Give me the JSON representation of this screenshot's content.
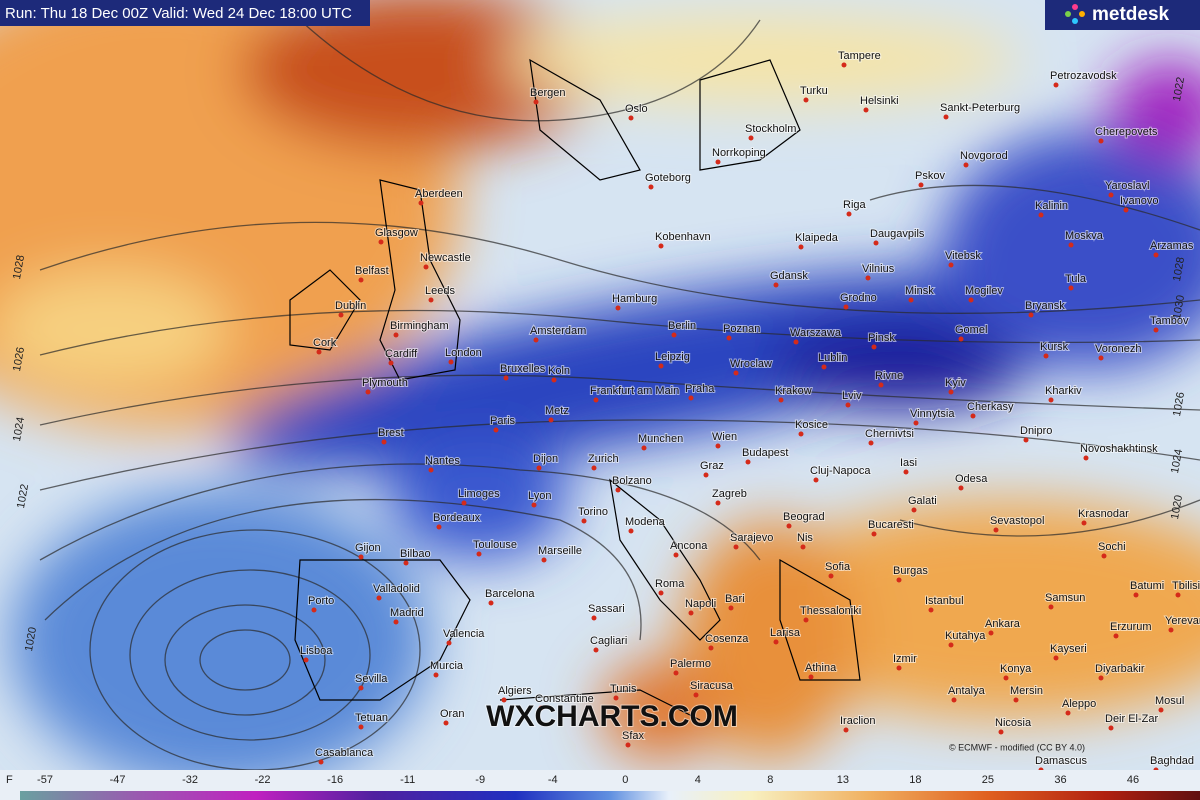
{
  "header": {
    "run": "Run: Thu 18 Dec 00Z Valid: Wed 24 Dec 18:00 UTC",
    "logo": "metdesk"
  },
  "watermark": "WXCHARTS.COM",
  "credit": "© ECMWF - modified (CC BY 4.0)",
  "isobar_labels": [
    1028,
    1026,
    1024,
    1022,
    1020,
    1022,
    1028,
    1030,
    1026,
    1024,
    1020
  ],
  "cities": [
    "Bergen",
    "Oslo",
    "Tampere",
    "Petrozavodsk",
    "Turku",
    "Helsinki",
    "Sankt-Peterburg",
    "Stockholm",
    "Norrkoping",
    "Goteborg",
    "Cherepovets",
    "Novgorod",
    "Pskov",
    "Yaroslavl",
    "Ivanovo",
    "Kalinin",
    "Riga",
    "Moskva",
    "Aberdeen",
    "Glasgow",
    "Kobenhavn",
    "Klaipeda",
    "Daugavpils",
    "Arzamas",
    "Vitebsk",
    "Belfast",
    "Newcastle",
    "Vilnius",
    "Tula",
    "Dublin",
    "Leeds",
    "Gdansk",
    "Hamburg",
    "Grodno",
    "Minsk",
    "Mogilev",
    "Bryansk",
    "Tambov",
    "Birmingham",
    "Amsterdam",
    "Berlin",
    "Poznan",
    "Warszawa",
    "Pinsk",
    "Gomel",
    "Kursk",
    "Voronezh",
    "Cork",
    "Cardiff",
    "London",
    "Leipzig",
    "Wroclaw",
    "Lublin",
    "Plymouth",
    "Bruxelles",
    "Koln",
    "Frankfurt am Main",
    "Praha",
    "Krakow",
    "Lviv",
    "Rivne",
    "Kyiv",
    "Kharkiv",
    "Cherkasy",
    "Vinnytsia",
    "Paris",
    "Metz",
    "Kosice",
    "Chernivtsi",
    "Dnipro",
    "Novoshakhtinsk",
    "Brest",
    "Munchen",
    "Wien",
    "Budapest",
    "Nantes",
    "Dijon",
    "Zurich",
    "Graz",
    "Iasi",
    "Cluj-Napoca",
    "Odesa",
    "Limoges",
    "Lyon",
    "Bolzano",
    "Zagreb",
    "Galati",
    "Bordeaux",
    "Torino",
    "Beograd",
    "Sevastopol",
    "Krasnodar",
    "Modena",
    "Bucaresti",
    "Toulouse",
    "Marseille",
    "Ancona",
    "Sarajevo",
    "Nis",
    "Sochi",
    "Gijon",
    "Bilbao",
    "Sofia",
    "Burgas",
    "Batumi",
    "Tbilisi",
    "Valladolid",
    "Porto",
    "Roma",
    "Barcelona",
    "Istanbul",
    "Samsun",
    "Napoli",
    "Bari",
    "Sassari",
    "Madrid",
    "Thessaloniki",
    "Ankara",
    "Erzurum",
    "Yerevan",
    "Valencia",
    "Cagliari",
    "Cosenza",
    "Larisa",
    "Kutahya",
    "Kayseri",
    "Lisboa",
    "Murcia",
    "Palermo",
    "Izmir",
    "Konya",
    "Diyarbakir",
    "Athina",
    "Sevilla",
    "Siracusa",
    "Antalya",
    "Mersin",
    "Algiers",
    "Constantine",
    "Tunis",
    "Aleppo",
    "Mosul",
    "Tetuan",
    "Oran",
    "Iraclion",
    "Nicosia",
    "Deir El-Zar",
    "Casablanca",
    "Sfax",
    "Damascus",
    "Baghdad"
  ],
  "legend": {
    "unit": "F",
    "ticks": [
      -57,
      -47,
      -32,
      -22,
      -16,
      -11,
      -9,
      -4,
      0,
      4,
      8,
      13,
      18,
      25,
      36,
      46
    ]
  }
}
